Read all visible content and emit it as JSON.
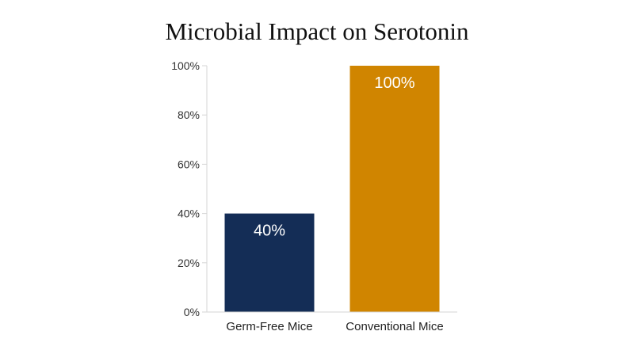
{
  "chart_data": {
    "type": "bar",
    "title": "Microbial Impact on Serotonin",
    "xlabel": "",
    "ylabel": "",
    "categories": [
      "Germ-Free Mice",
      "Conventional Mice"
    ],
    "values": [
      40,
      100
    ],
    "data_labels": [
      "40%",
      "100%"
    ],
    "colors": [
      "#142d56",
      "#d08500"
    ],
    "ylim": [
      0,
      100
    ],
    "yticks": [
      0,
      20,
      40,
      60,
      80,
      100
    ],
    "ytick_labels": [
      "0%",
      "20%",
      "40%",
      "60%",
      "80%",
      "100%"
    ],
    "grid": false,
    "legend": "none"
  }
}
